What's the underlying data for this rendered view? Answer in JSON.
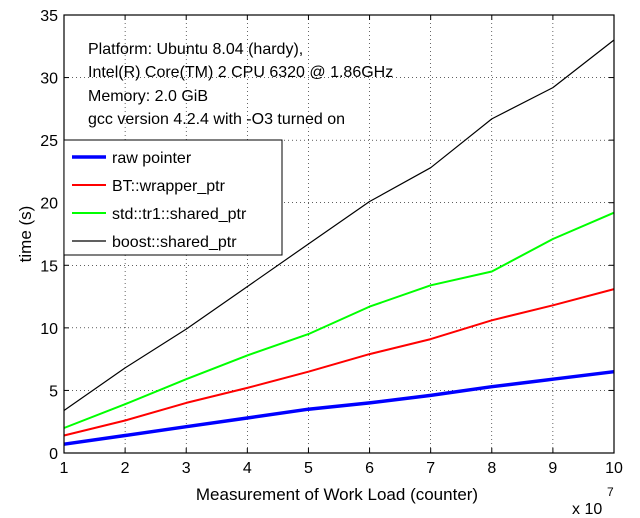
{
  "chart_data": {
    "type": "line",
    "xlabel": "Measurement of Work Load (counter)",
    "ylabel": "time (s)",
    "x_exponent_base": "x 10",
    "x_exponent_power": "7",
    "xlim": [
      1,
      10
    ],
    "ylim": [
      0,
      35
    ],
    "x_ticks": [
      1,
      2,
      3,
      4,
      5,
      6,
      7,
      8,
      9,
      10
    ],
    "y_ticks": [
      0,
      5,
      10,
      15,
      20,
      25,
      30,
      35
    ],
    "grid": true,
    "legend_position": "upper-left",
    "annotations": [
      "Platform: Ubuntu 8.04 (hardy),",
      "Intel(R) Core(TM) 2 CPU 6320 @ 1.86GHz",
      "Memory: 2.0 GiB",
      "gcc version 4.2.4  with -O3 turned on"
    ],
    "x": [
      1,
      2,
      3,
      4,
      5,
      6,
      7,
      8,
      9,
      10
    ],
    "series": [
      {
        "name": "raw pointer",
        "color": "#0000ff",
        "width": 3.5,
        "values": [
          0.7,
          1.4,
          2.1,
          2.8,
          3.5,
          4.0,
          4.6,
          5.3,
          5.9,
          6.5
        ]
      },
      {
        "name": "BT::wrapper_ptr",
        "color": "#ff0000",
        "width": 2,
        "values": [
          1.4,
          2.6,
          4.0,
          5.2,
          6.5,
          7.9,
          9.1,
          10.6,
          11.8,
          13.1
        ]
      },
      {
        "name": "std::tr1::shared_ptr",
        "color": "#00ff00",
        "width": 2,
        "values": [
          2.0,
          3.9,
          5.9,
          7.8,
          9.5,
          11.7,
          13.4,
          14.5,
          17.1,
          19.2
        ]
      },
      {
        "name": "boost::shared_ptr",
        "color": "#000000",
        "width": 1.2,
        "values": [
          3.4,
          6.8,
          9.9,
          13.3,
          16.7,
          20.1,
          22.8,
          26.7,
          29.2,
          33.0
        ]
      }
    ]
  }
}
